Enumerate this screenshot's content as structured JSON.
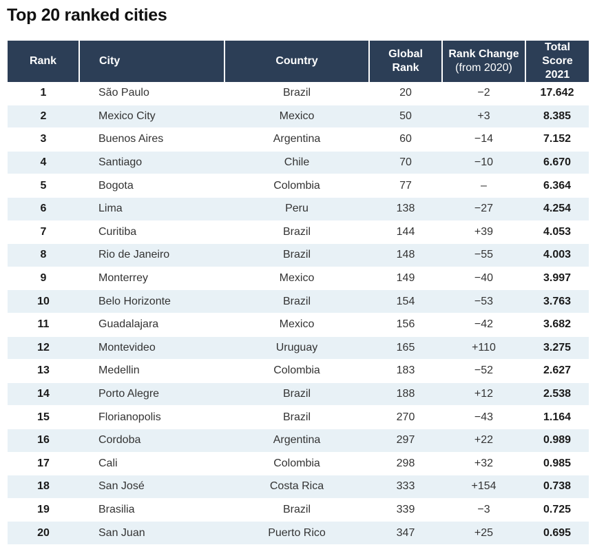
{
  "title": "Top 20 ranked cities",
  "headers": {
    "rank": "Rank",
    "city": "City",
    "country": "Country",
    "global_rank_line1": "Global",
    "global_rank_line2": "Rank",
    "rank_change_line1": "Rank Change",
    "rank_change_line2": "(from 2020)",
    "total_score_line1": "Total Score",
    "total_score_line2": "2021"
  },
  "rows": [
    {
      "rank": "1",
      "city": "São Paulo",
      "country": "Brazil",
      "global_rank": "20",
      "rank_change": "−2",
      "total_score": "17.642"
    },
    {
      "rank": "2",
      "city": "Mexico City",
      "country": "Mexico",
      "global_rank": "50",
      "rank_change": "+3",
      "total_score": "8.385"
    },
    {
      "rank": "3",
      "city": "Buenos Aires",
      "country": "Argentina",
      "global_rank": "60",
      "rank_change": "−14",
      "total_score": "7.152"
    },
    {
      "rank": "4",
      "city": "Santiago",
      "country": "Chile",
      "global_rank": "70",
      "rank_change": "−10",
      "total_score": "6.670"
    },
    {
      "rank": "5",
      "city": "Bogota",
      "country": "Colombia",
      "global_rank": "77",
      "rank_change": "–",
      "total_score": "6.364"
    },
    {
      "rank": "6",
      "city": "Lima",
      "country": "Peru",
      "global_rank": "138",
      "rank_change": "−27",
      "total_score": "4.254"
    },
    {
      "rank": "7",
      "city": "Curitiba",
      "country": "Brazil",
      "global_rank": "144",
      "rank_change": "+39",
      "total_score": "4.053"
    },
    {
      "rank": "8",
      "city": "Rio de Janeiro",
      "country": "Brazil",
      "global_rank": "148",
      "rank_change": "−55",
      "total_score": "4.003"
    },
    {
      "rank": "9",
      "city": "Monterrey",
      "country": "Mexico",
      "global_rank": "149",
      "rank_change": "−40",
      "total_score": "3.997"
    },
    {
      "rank": "10",
      "city": "Belo Horizonte",
      "country": "Brazil",
      "global_rank": "154",
      "rank_change": "−53",
      "total_score": "3.763"
    },
    {
      "rank": "11",
      "city": "Guadalajara",
      "country": "Mexico",
      "global_rank": "156",
      "rank_change": "−42",
      "total_score": "3.682"
    },
    {
      "rank": "12",
      "city": "Montevideo",
      "country": "Uruguay",
      "global_rank": "165",
      "rank_change": "+110",
      "total_score": "3.275"
    },
    {
      "rank": "13",
      "city": "Medellin",
      "country": "Colombia",
      "global_rank": "183",
      "rank_change": "−52",
      "total_score": "2.627"
    },
    {
      "rank": "14",
      "city": "Porto Alegre",
      "country": "Brazil",
      "global_rank": "188",
      "rank_change": "+12",
      "total_score": "2.538"
    },
    {
      "rank": "15",
      "city": "Florianopolis",
      "country": "Brazil",
      "global_rank": "270",
      "rank_change": "−43",
      "total_score": "1.164"
    },
    {
      "rank": "16",
      "city": "Cordoba",
      "country": "Argentina",
      "global_rank": "297",
      "rank_change": "+22",
      "total_score": "0.989"
    },
    {
      "rank": "17",
      "city": "Cali",
      "country": "Colombia",
      "global_rank": "298",
      "rank_change": "+32",
      "total_score": "0.985"
    },
    {
      "rank": "18",
      "city": "San José",
      "country": "Costa Rica",
      "global_rank": "333",
      "rank_change": "+154",
      "total_score": "0.738"
    },
    {
      "rank": "19",
      "city": "Brasilia",
      "country": "Brazil",
      "global_rank": "339",
      "rank_change": "−3",
      "total_score": "0.725"
    },
    {
      "rank": "20",
      "city": "San Juan",
      "country": "Puerto Rico",
      "global_rank": "347",
      "rank_change": "+25",
      "total_score": "0.695"
    }
  ],
  "colors": {
    "header_bg": "#2c3e56",
    "stripe_bg": "#e8f1f6"
  }
}
